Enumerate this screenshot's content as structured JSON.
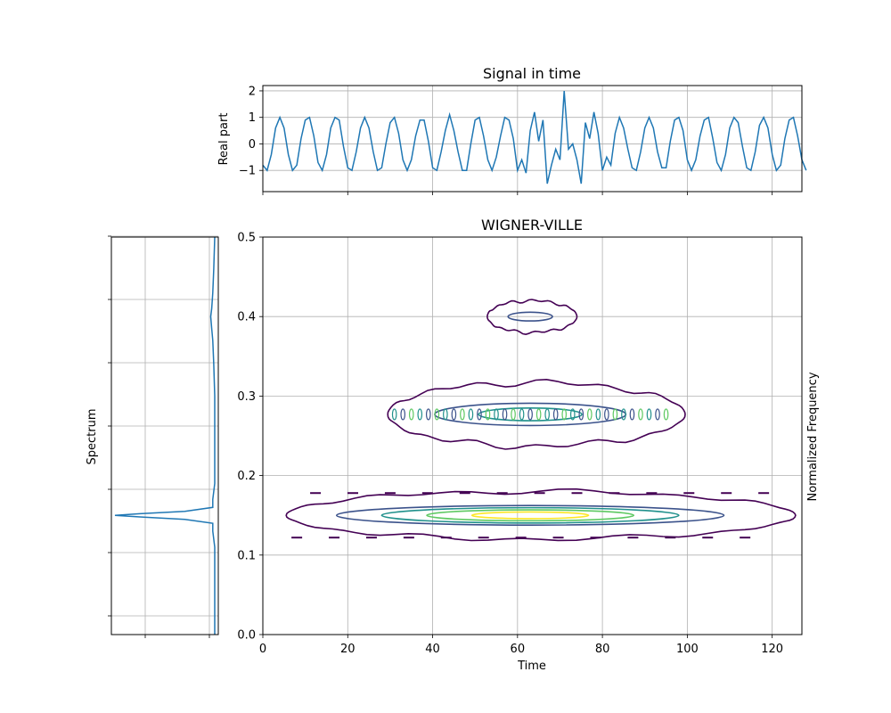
{
  "colors": {
    "signal": "#1f77b4",
    "grid": "#b0b0b0",
    "axes": "#000000",
    "contour_levels": [
      "#440154",
      "#3b528b",
      "#21918c",
      "#5ec962",
      "#fde725"
    ]
  },
  "chart_data": [
    {
      "id": "signal",
      "type": "line",
      "title": "Signal in time",
      "xlabel": "",
      "ylabel": "Real part",
      "xlim": [
        0,
        127
      ],
      "ylim": [
        -1.8,
        2.2
      ],
      "xticks": [
        0,
        20,
        40,
        60,
        80,
        100,
        120
      ],
      "yticks": [
        -1,
        0,
        1,
        2
      ],
      "ytick_labels": [
        "−1",
        "0",
        "1",
        "2"
      ],
      "grid": true,
      "x_start": 0,
      "x_step": 1,
      "y": [
        -0.8,
        -1.0,
        -0.4,
        0.6,
        1.0,
        0.6,
        -0.4,
        -1.0,
        -0.8,
        0.2,
        0.9,
        1.0,
        0.3,
        -0.7,
        -1.0,
        -0.4,
        0.6,
        1.0,
        0.9,
        -0.1,
        -0.9,
        -1.0,
        -0.3,
        0.6,
        1.0,
        0.6,
        -0.3,
        -1.0,
        -0.9,
        0.0,
        0.8,
        1.0,
        0.4,
        -0.6,
        -1.0,
        -0.6,
        0.3,
        0.9,
        0.9,
        0.1,
        -0.9,
        -1.0,
        -0.3,
        0.5,
        1.1,
        0.5,
        -0.3,
        -1.0,
        -1.0,
        0.0,
        0.9,
        1.0,
        0.3,
        -0.6,
        -1.0,
        -0.5,
        0.3,
        1.0,
        0.9,
        0.2,
        -1.0,
        -0.6,
        -1.1,
        0.5,
        1.2,
        0.1,
        0.9,
        -1.5,
        -0.8,
        -0.2,
        -0.6,
        2.0,
        -0.2,
        0.0,
        -0.6,
        -1.5,
        0.8,
        0.2,
        1.2,
        0.4,
        -1.0,
        -0.5,
        -0.8,
        0.4,
        1.0,
        0.6,
        -0.2,
        -0.9,
        -1.0,
        -0.3,
        0.6,
        1.0,
        0.6,
        -0.3,
        -0.9,
        -0.9,
        0.1,
        0.9,
        1.0,
        0.5,
        -0.6,
        -1.0,
        -0.6,
        0.3,
        0.9,
        1.0,
        0.2,
        -0.7,
        -1.0,
        -0.4,
        0.6,
        1.0,
        0.8,
        -0.1,
        -0.9,
        -1.0,
        -0.3,
        0.7,
        1.0,
        0.6,
        -0.4,
        -1.0,
        -0.8,
        0.2,
        0.9,
        1.0,
        0.3,
        -0.6,
        -1.0
      ]
    },
    {
      "id": "spectrum",
      "type": "line",
      "title": "",
      "xlabel": "",
      "ylabel": "Spectrum",
      "ylim": [
        0,
        0.5
      ],
      "grid": true,
      "freq": [
        0.0,
        0.02,
        0.05,
        0.08,
        0.11,
        0.13,
        0.14,
        0.145,
        0.148,
        0.15,
        0.152,
        0.155,
        0.16,
        0.17,
        0.19,
        0.22,
        0.26,
        0.3,
        0.34,
        0.37,
        0.385,
        0.4,
        0.41,
        0.43,
        0.46,
        0.5
      ],
      "magnitude": [
        0.0,
        0.0,
        0.0,
        0.0,
        0.0,
        0.02,
        0.02,
        0.3,
        0.75,
        1.0,
        0.75,
        0.3,
        0.02,
        0.02,
        0.0,
        0.0,
        0.0,
        0.0,
        0.01,
        0.02,
        0.03,
        0.04,
        0.03,
        0.02,
        0.01,
        0.0
      ]
    },
    {
      "id": "wigner",
      "type": "contour",
      "title": "WIGNER-VILLE",
      "xlabel": "Time",
      "ylabel": "Normalized Frequency",
      "xlim": [
        0,
        127
      ],
      "ylim": [
        0,
        0.5
      ],
      "xticks": [
        0,
        20,
        40,
        60,
        80,
        100,
        120
      ],
      "yticks": [
        0.0,
        0.1,
        0.2,
        0.3,
        0.4,
        0.5
      ],
      "ytick_labels": [
        "0.0",
        "0.1",
        "0.2",
        "0.3",
        "0.4",
        "0.5"
      ],
      "grid": true,
      "components": [
        {
          "t_center": 63,
          "f_center": 0.15,
          "t_extent": [
            1,
            126
          ],
          "f_extent": [
            0.12,
            0.18
          ],
          "levels": 5
        },
        {
          "t_center": 63,
          "f_center": 0.277,
          "t_extent": [
            27,
            100
          ],
          "f_extent": [
            0.24,
            0.32
          ],
          "levels": 3
        },
        {
          "t_center": 63,
          "f_center": 0.4,
          "t_extent": [
            52,
            74
          ],
          "f_extent": [
            0.385,
            0.425
          ],
          "levels": 2
        }
      ]
    }
  ]
}
